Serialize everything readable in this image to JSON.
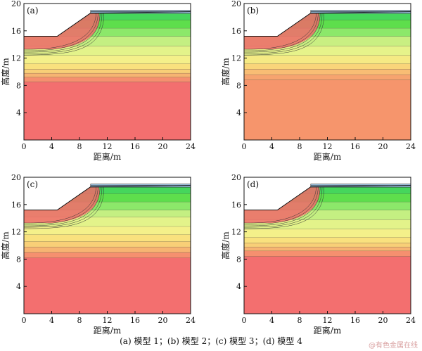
{
  "chart_data": [
    {
      "type": "heatmap",
      "panel_label": "(a)",
      "xlabel": "距离/m",
      "ylabel": "高度/m",
      "xlim": [
        0,
        24
      ],
      "ylim": [
        0,
        20
      ],
      "xticks": [
        0,
        4,
        8,
        12,
        16,
        20,
        24
      ],
      "yticks": [
        4,
        8,
        12,
        16,
        20
      ],
      "slope_profile": {
        "x": [
          0,
          4.8,
          9.6,
          24
        ],
        "y": [
          15.2,
          15.2,
          18.6,
          18.8
        ]
      },
      "bands": [
        {
          "y_from": 0,
          "y_to": 8.5,
          "color": "#f36f6f"
        },
        {
          "y_from": 8.5,
          "y_to": 9.2,
          "color": "#f5906f"
        },
        {
          "y_from": 9.2,
          "y_to": 9.8,
          "color": "#f6b472"
        },
        {
          "y_from": 9.8,
          "y_to": 10.4,
          "color": "#f8cf77"
        },
        {
          "y_from": 10.4,
          "y_to": 11.2,
          "color": "#f9e17e"
        },
        {
          "y_from": 11.2,
          "y_to": 12.4,
          "color": "#f4f08a"
        },
        {
          "y_from": 12.4,
          "y_to": 13.8,
          "color": "#e3f38a"
        },
        {
          "y_from": 13.8,
          "y_to": 15.2,
          "color": "#c4ef82"
        },
        {
          "y_from": 15.2,
          "y_to": 16.4,
          "color": "#8ce86a"
        },
        {
          "y_from": 16.4,
          "y_to": 17.6,
          "color": "#5ede4c"
        },
        {
          "y_from": 17.6,
          "y_to": 18.6,
          "color": "#45d65c"
        }
      ]
    },
    {
      "type": "heatmap",
      "panel_label": "(b)",
      "xlabel": "距离/m",
      "ylabel": "高度/m",
      "xlim": [
        0,
        24
      ],
      "ylim": [
        0,
        20
      ],
      "xticks": [
        0,
        4,
        8,
        12,
        16,
        20,
        24
      ],
      "yticks": [
        4,
        8,
        12,
        16,
        20
      ],
      "slope_profile": {
        "x": [
          0,
          4.8,
          9.6,
          24
        ],
        "y": [
          15.2,
          15.2,
          18.6,
          18.8
        ]
      },
      "bands": [
        {
          "y_from": 0,
          "y_to": 8.8,
          "color": "#f6956c"
        },
        {
          "y_from": 8.8,
          "y_to": 9.6,
          "color": "#f6a46f"
        },
        {
          "y_from": 9.6,
          "y_to": 10.4,
          "color": "#f8bd74"
        },
        {
          "y_from": 10.4,
          "y_to": 11.2,
          "color": "#f9d57a"
        },
        {
          "y_from": 11.2,
          "y_to": 12.4,
          "color": "#f5ea84"
        },
        {
          "y_from": 12.4,
          "y_to": 13.8,
          "color": "#e6f38a"
        },
        {
          "y_from": 13.8,
          "y_to": 15.2,
          "color": "#c9ef82"
        },
        {
          "y_from": 15.2,
          "y_to": 16.4,
          "color": "#8ce86a"
        },
        {
          "y_from": 16.4,
          "y_to": 17.6,
          "color": "#5ede4c"
        },
        {
          "y_from": 17.6,
          "y_to": 18.6,
          "color": "#45d65c"
        }
      ]
    },
    {
      "type": "heatmap",
      "panel_label": "(c)",
      "xlabel": "距离/m",
      "ylabel": "高度/m",
      "xlim": [
        0,
        24
      ],
      "ylim": [
        0,
        20
      ],
      "xticks": [
        0,
        4,
        8,
        12,
        16,
        20,
        24
      ],
      "yticks": [
        4,
        8,
        12,
        16,
        20
      ],
      "slope_profile": {
        "x": [
          0,
          4.8,
          9.6,
          24
        ],
        "y": [
          15.2,
          15.2,
          18.6,
          18.8
        ]
      },
      "bands": [
        {
          "y_from": 0,
          "y_to": 8.2,
          "color": "#f36f6f"
        },
        {
          "y_from": 8.2,
          "y_to": 9.0,
          "color": "#f5906f"
        },
        {
          "y_from": 9.0,
          "y_to": 9.8,
          "color": "#f6b472"
        },
        {
          "y_from": 9.8,
          "y_to": 10.6,
          "color": "#f8cf77"
        },
        {
          "y_from": 10.6,
          "y_to": 11.6,
          "color": "#f9e17e"
        },
        {
          "y_from": 11.6,
          "y_to": 12.8,
          "color": "#f4f08a"
        },
        {
          "y_from": 12.8,
          "y_to": 14.2,
          "color": "#e3f38a"
        },
        {
          "y_from": 14.2,
          "y_to": 15.2,
          "color": "#c4ef82"
        },
        {
          "y_from": 15.2,
          "y_to": 16.4,
          "color": "#8ce86a"
        },
        {
          "y_from": 16.4,
          "y_to": 17.6,
          "color": "#5ede4c"
        },
        {
          "y_from": 17.6,
          "y_to": 18.6,
          "color": "#45d65c"
        }
      ]
    },
    {
      "type": "heatmap",
      "panel_label": "(d)",
      "xlabel": "距离/m",
      "ylabel": "高度/m",
      "xlim": [
        0,
        24
      ],
      "ylim": [
        0,
        20
      ],
      "xticks": [
        0,
        4,
        8,
        12,
        16,
        20,
        24
      ],
      "yticks": [
        4,
        8,
        12,
        16,
        20
      ],
      "slope_profile": {
        "x": [
          0,
          4.8,
          9.6,
          24
        ],
        "y": [
          15.2,
          15.2,
          18.6,
          18.8
        ]
      },
      "bands": [
        {
          "y_from": 0,
          "y_to": 8.4,
          "color": "#f36f6f"
        },
        {
          "y_from": 8.4,
          "y_to": 9.2,
          "color": "#f5906f"
        },
        {
          "y_from": 9.2,
          "y_to": 9.8,
          "color": "#f6b472"
        },
        {
          "y_from": 9.8,
          "y_to": 10.4,
          "color": "#f8cf77"
        },
        {
          "y_from": 10.4,
          "y_to": 11.2,
          "color": "#f9e17e"
        },
        {
          "y_from": 11.2,
          "y_to": 12.4,
          "color": "#f4f08a"
        },
        {
          "y_from": 12.4,
          "y_to": 13.8,
          "color": "#e3f38a"
        },
        {
          "y_from": 13.8,
          "y_to": 15.2,
          "color": "#c4ef82"
        },
        {
          "y_from": 15.2,
          "y_to": 16.4,
          "color": "#8ce86a"
        },
        {
          "y_from": 16.4,
          "y_to": 17.6,
          "color": "#5ede4c"
        },
        {
          "y_from": 17.6,
          "y_to": 18.6,
          "color": "#45d65c"
        }
      ]
    }
  ],
  "caption": "(a)  模型 1；(b)  模型 2；(c)  模型 3；(d)  模型 4",
  "watermark": "@有色金属在线",
  "colors": {
    "slope_red": "#f06a6a",
    "slope_wet_zone": "#e85c5c",
    "crest_blue": "#9fc8e8",
    "axis": "#111111"
  }
}
